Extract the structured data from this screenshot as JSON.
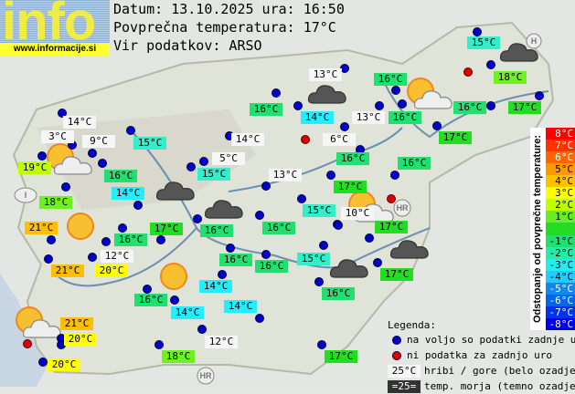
{
  "logo": {
    "text": "info",
    "url": "www.informacije.si"
  },
  "header": {
    "date_line": "Datum: 13.10.2025 ura: 16:50",
    "avg_line": "Povprečna temperatura: 17°C",
    "source_line": "Vir podatkov: ARSO"
  },
  "map_markers": {
    "HR": "HR",
    "H": "H",
    "I": "I"
  },
  "stations": [
    {
      "text": "15°C",
      "kind": "15"
    },
    {
      "text": "13°C",
      "kind": "white"
    },
    {
      "text": "16°C",
      "kind": "16"
    },
    {
      "text": "18°C",
      "kind": "18"
    },
    {
      "text": "16°C",
      "kind": "16"
    },
    {
      "text": "14°C",
      "kind": "14"
    },
    {
      "text": "13°C",
      "kind": "white"
    },
    {
      "text": "16°C",
      "kind": "16"
    },
    {
      "text": "16°C",
      "kind": "16"
    },
    {
      "text": "17°C",
      "kind": "17"
    },
    {
      "text": "14°C",
      "kind": "white"
    },
    {
      "text": "3°C",
      "kind": "white"
    },
    {
      "text": "9°C",
      "kind": "white"
    },
    {
      "text": "15°C",
      "kind": "15"
    },
    {
      "text": "14°C",
      "kind": "white"
    },
    {
      "text": "6°C",
      "kind": "white"
    },
    {
      "text": "17°C",
      "kind": "17"
    },
    {
      "text": "19°C",
      "kind": "19"
    },
    {
      "text": "5°C",
      "kind": "white"
    },
    {
      "text": "16°C",
      "kind": "16"
    },
    {
      "text": "16°C",
      "kind": "16"
    },
    {
      "text": "16°C",
      "kind": "16"
    },
    {
      "text": "15°C",
      "kind": "15"
    },
    {
      "text": "13°C",
      "kind": "white"
    },
    {
      "text": "17°C",
      "kind": "17"
    },
    {
      "text": "14°C",
      "kind": "14"
    },
    {
      "text": "18°C",
      "kind": "18"
    },
    {
      "text": "15°C",
      "kind": "15"
    },
    {
      "text": "10°C",
      "kind": "white"
    },
    {
      "text": "17°C",
      "kind": "17"
    },
    {
      "text": "21°C",
      "kind": "21"
    },
    {
      "text": "17°C",
      "kind": "17"
    },
    {
      "text": "16°C",
      "kind": "16"
    },
    {
      "text": "16°C",
      "kind": "16"
    },
    {
      "text": "16°C",
      "kind": "16"
    },
    {
      "text": "12°C",
      "kind": "white"
    },
    {
      "text": "16°C",
      "kind": "16"
    },
    {
      "text": "16°C",
      "kind": "16"
    },
    {
      "text": "15°C",
      "kind": "15"
    },
    {
      "text": "17°C",
      "kind": "17"
    },
    {
      "text": "21°C",
      "kind": "21"
    },
    {
      "text": "20°C",
      "kind": "20"
    },
    {
      "text": "14°C",
      "kind": "14"
    },
    {
      "text": "16°C",
      "kind": "16"
    },
    {
      "text": "16°C",
      "kind": "16"
    },
    {
      "text": "14°C",
      "kind": "14"
    },
    {
      "text": "14°C",
      "kind": "14"
    },
    {
      "text": "21°C",
      "kind": "21"
    },
    {
      "text": "20°C",
      "kind": "20"
    },
    {
      "text": "12°C",
      "kind": "white"
    },
    {
      "text": "18°C",
      "kind": "18"
    },
    {
      "text": "17°C",
      "kind": "17"
    },
    {
      "text": "20°C",
      "kind": "20"
    }
  ],
  "scale": {
    "title": "Odstopanje od povprečne temperature:",
    "bands": [
      {
        "label": "8°C",
        "color": "#ff0000",
        "fg": "#ffffff"
      },
      {
        "label": "7°C",
        "color": "#ff3300",
        "fg": "#ffffff"
      },
      {
        "label": "6°C",
        "color": "#ff6600",
        "fg": "#ffffff"
      },
      {
        "label": "5°C",
        "color": "#ff9900",
        "fg": "#000000"
      },
      {
        "label": "4°C",
        "color": "#ffc000",
        "fg": "#000000"
      },
      {
        "label": "3°C",
        "color": "#ffff00",
        "fg": "#000000"
      },
      {
        "label": "2°C",
        "color": "#c0ff00",
        "fg": "#000000"
      },
      {
        "label": "1°C",
        "color": "#66ee22",
        "fg": "#000000"
      },
      {
        "label": "",
        "color": "#22dd22",
        "fg": "#000000"
      },
      {
        "label": "-1°C",
        "color": "#22e070",
        "fg": "#000000"
      },
      {
        "label": "-2°C",
        "color": "#22eeaa",
        "fg": "#000000"
      },
      {
        "label": "-3°C",
        "color": "#22eeee",
        "fg": "#000000"
      },
      {
        "label": "-4°C",
        "color": "#22ccff",
        "fg": "#000000"
      },
      {
        "label": "-5°C",
        "color": "#1188ee",
        "fg": "#ffffff"
      },
      {
        "label": "-6°C",
        "color": "#0066ee",
        "fg": "#ffffff"
      },
      {
        "label": "-7°C",
        "color": "#0033ee",
        "fg": "#ffffff"
      },
      {
        "label": "-8°C",
        "color": "#0000ee",
        "fg": "#ffffff"
      }
    ]
  },
  "legend": {
    "title": "Legenda:",
    "blue": "na voljo so podatki zadnje ure",
    "red": "ni podatka za zadnjo uro",
    "mountain_sample": "25°C",
    "mountain": "hribi / gore (belo ozadje)",
    "sea_sample": "=25=",
    "sea": "temp. morja (temno ozadje)"
  },
  "colors": {
    "dot_available": "#0000cc",
    "dot_missing": "#dd0000"
  }
}
